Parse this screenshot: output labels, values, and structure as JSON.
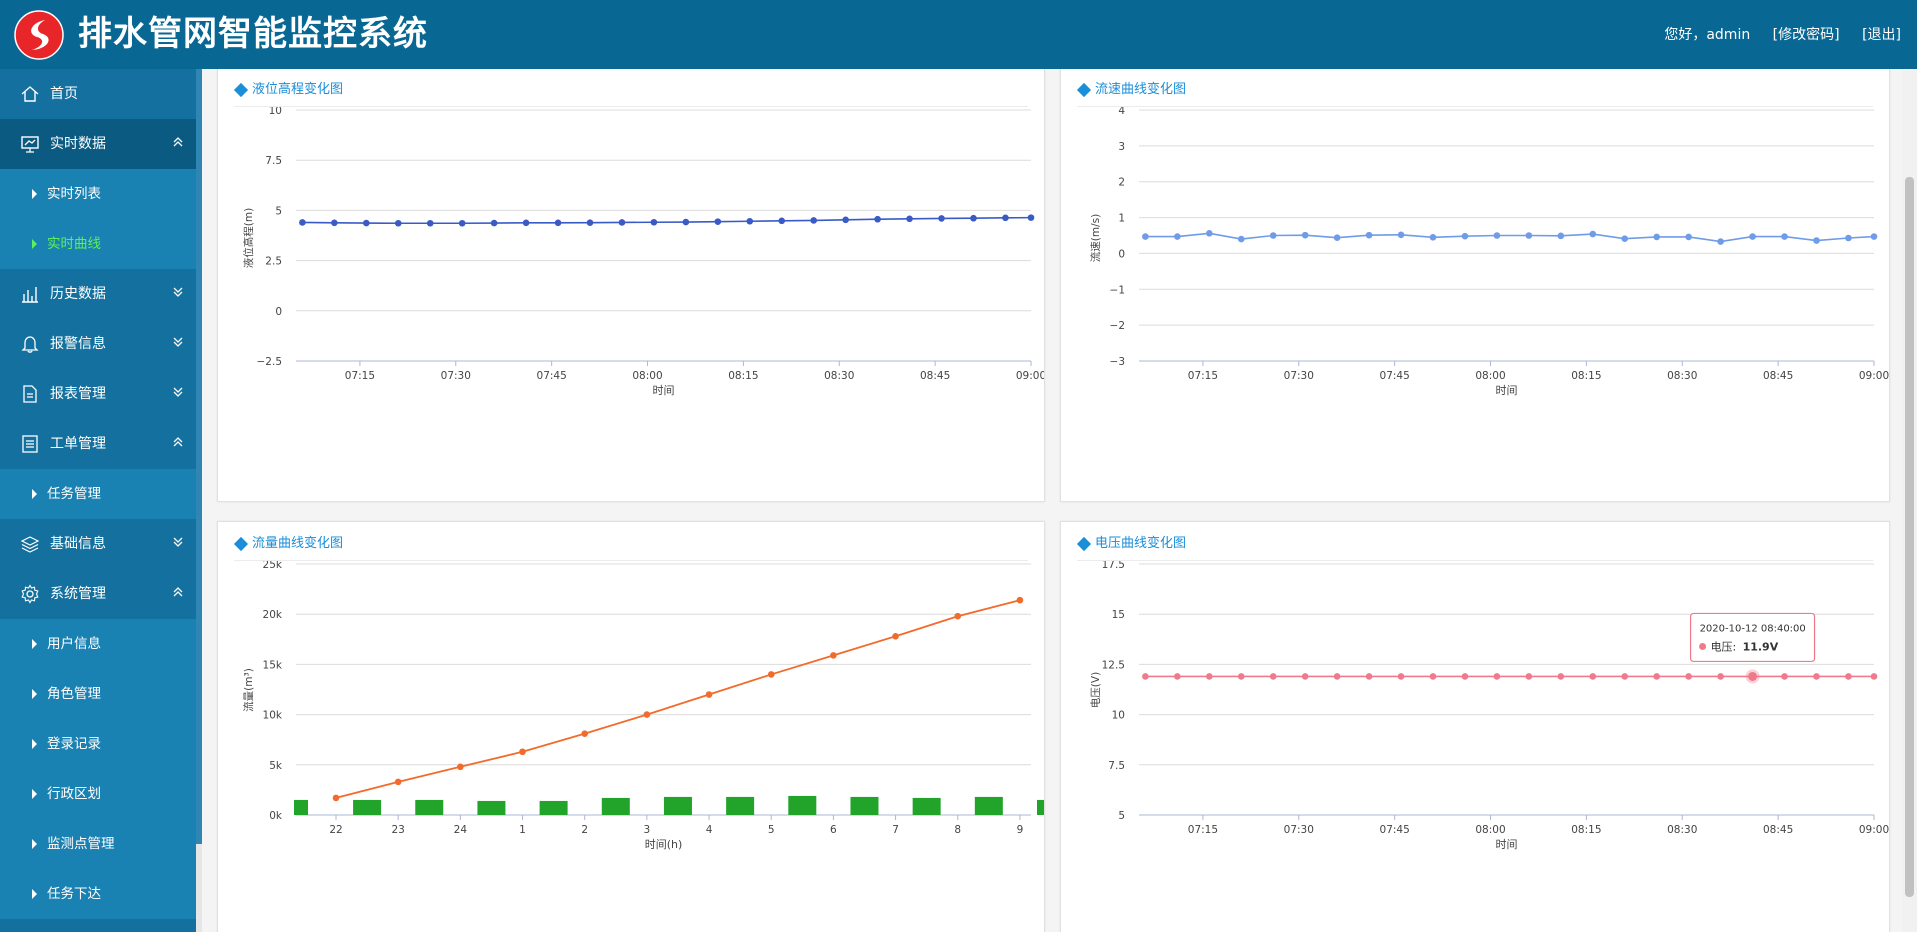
{
  "header": {
    "title": "排水管网智能监控系统",
    "greeting": "您好，admin",
    "change_password": "[修改密码]",
    "logout": "[退出]",
    "brand_color": "#086793"
  },
  "sidebar": {
    "items": [
      {
        "label": "首页",
        "icon": "home-icon",
        "type": "item",
        "chevron": ""
      },
      {
        "label": "实时数据",
        "icon": "monitor-icon",
        "type": "item",
        "chevron": "up",
        "active": true
      },
      {
        "label": "实时列表",
        "type": "sub"
      },
      {
        "label": "实时曲线",
        "type": "sub",
        "current": true
      },
      {
        "label": "历史数据",
        "icon": "bar-chart-icon",
        "type": "item",
        "chevron": "down"
      },
      {
        "label": "报警信息",
        "icon": "bell-icon",
        "type": "item",
        "chevron": "down"
      },
      {
        "label": "报表管理",
        "icon": "document-icon",
        "type": "item",
        "chevron": "down"
      },
      {
        "label": "工单管理",
        "icon": "list-icon",
        "type": "item",
        "chevron": "up"
      },
      {
        "label": "任务管理",
        "type": "sub"
      },
      {
        "label": "基础信息",
        "icon": "layers-icon",
        "type": "item",
        "chevron": "down"
      },
      {
        "label": "系统管理",
        "icon": "gear-icon",
        "type": "item",
        "chevron": "up"
      },
      {
        "label": "用户信息",
        "type": "sub"
      },
      {
        "label": "角色管理",
        "type": "sub"
      },
      {
        "label": "登录记录",
        "type": "sub"
      },
      {
        "label": "行政区划",
        "type": "sub"
      },
      {
        "label": "监测点管理",
        "type": "sub"
      },
      {
        "label": "任务下达",
        "type": "sub"
      }
    ]
  },
  "panels": {
    "level": {
      "title": "液位高程变化图"
    },
    "velocity": {
      "title": "流速曲线变化图"
    },
    "flow": {
      "title": "流量曲线变化图"
    },
    "voltage": {
      "title": "电压曲线变化图"
    }
  },
  "chart_data": [
    {
      "id": "level",
      "type": "line",
      "title": "液位高程变化图",
      "xlabel": "时间",
      "ylabel": "液位高程(m)",
      "x_ticks": [
        "07:15",
        "07:30",
        "07:45",
        "08:00",
        "08:15",
        "08:30",
        "08:45",
        "09:00"
      ],
      "x_range": [
        "07:05",
        "09:00"
      ],
      "y_ticks": [
        "10",
        "7.5",
        "5",
        "2.5",
        "0",
        "−2.5"
      ],
      "ylim": [
        -2.5,
        10
      ],
      "series": [
        {
          "color": "#3a5bc7",
          "x": [
            "07:06",
            "07:11",
            "07:16",
            "07:21",
            "07:26",
            "07:31",
            "07:36",
            "07:41",
            "07:46",
            "07:51",
            "07:56",
            "08:01",
            "08:06",
            "08:11",
            "08:16",
            "08:21",
            "08:26",
            "08:31",
            "08:36",
            "08:41",
            "08:46",
            "08:51",
            "08:56",
            "09:00"
          ],
          "values": [
            4.4,
            4.38,
            4.37,
            4.36,
            4.36,
            4.36,
            4.37,
            4.38,
            4.38,
            4.39,
            4.4,
            4.41,
            4.42,
            4.44,
            4.46,
            4.48,
            4.5,
            4.53,
            4.56,
            4.58,
            4.6,
            4.61,
            4.63,
            4.64
          ]
        }
      ]
    },
    {
      "id": "velocity",
      "type": "line",
      "title": "流速曲线变化图",
      "xlabel": "时间",
      "ylabel": "流速(m/s)",
      "x_ticks": [
        "07:15",
        "07:30",
        "07:45",
        "08:00",
        "08:15",
        "08:30",
        "08:45",
        "09:00"
      ],
      "x_range": [
        "07:05",
        "09:00"
      ],
      "y_ticks": [
        "4",
        "3",
        "2",
        "1",
        "0",
        "−1",
        "−2",
        "−3"
      ],
      "ylim": [
        -3,
        4
      ],
      "series": [
        {
          "color": "#6f9be8",
          "x": [
            "07:06",
            "07:11",
            "07:16",
            "07:21",
            "07:26",
            "07:31",
            "07:36",
            "07:41",
            "07:46",
            "07:51",
            "07:56",
            "08:01",
            "08:06",
            "08:11",
            "08:16",
            "08:21",
            "08:26",
            "08:31",
            "08:36",
            "08:41",
            "08:46",
            "08:51",
            "08:56",
            "09:00"
          ],
          "values": [
            0.47,
            0.47,
            0.56,
            0.4,
            0.5,
            0.51,
            0.44,
            0.51,
            0.52,
            0.45,
            0.48,
            0.5,
            0.5,
            0.49,
            0.54,
            0.41,
            0.46,
            0.46,
            0.33,
            0.47,
            0.47,
            0.36,
            0.43,
            0.47
          ]
        }
      ]
    },
    {
      "id": "flow",
      "type": "bar+line",
      "title": "流量曲线变化图",
      "xlabel": "时间(h)",
      "ylabel": "流量(m³)",
      "categories": [
        "22",
        "23",
        "24",
        "1",
        "2",
        "3",
        "4",
        "5",
        "6",
        "7",
        "8",
        "9"
      ],
      "y_ticks": [
        "25k",
        "20k",
        "15k",
        "10k",
        "5k",
        "0k"
      ],
      "ylim": [
        0,
        25000
      ],
      "series": [
        {
          "type": "bar",
          "color": "#22a32a",
          "values": [
            1500,
            1500,
            1400,
            1400,
            1700,
            1800,
            1800,
            1900,
            1800,
            1700,
            1800,
            1500
          ],
          "extra_leading_bar": 1500
        },
        {
          "type": "line",
          "color": "#f26b2a",
          "values": [
            1700,
            3300,
            4800,
            6300,
            8100,
            10000,
            12000,
            14000,
            15900,
            17800,
            19800,
            21400
          ]
        }
      ]
    },
    {
      "id": "voltage",
      "type": "line",
      "title": "电压曲线变化图",
      "xlabel": "时间",
      "ylabel": "电压(V)",
      "x_ticks": [
        "07:15",
        "07:30",
        "07:45",
        "08:00",
        "08:15",
        "08:30",
        "08:45",
        "09:00"
      ],
      "x_range": [
        "07:05",
        "09:00"
      ],
      "y_ticks": [
        "17.5",
        "15",
        "12.5",
        "10",
        "7.5",
        "5"
      ],
      "ylim": [
        5,
        17.5
      ],
      "series": [
        {
          "name": "电压",
          "color": "#ef7a8c",
          "x": [
            "07:06",
            "07:11",
            "07:16",
            "07:21",
            "07:26",
            "07:31",
            "07:36",
            "07:41",
            "07:46",
            "07:51",
            "07:56",
            "08:01",
            "08:06",
            "08:11",
            "08:16",
            "08:21",
            "08:26",
            "08:31",
            "08:36",
            "08:41",
            "08:46",
            "08:51",
            "08:56",
            "09:00"
          ],
          "values": [
            11.9,
            11.9,
            11.9,
            11.9,
            11.9,
            11.9,
            11.9,
            11.9,
            11.9,
            11.9,
            11.9,
            11.9,
            11.9,
            11.9,
            11.9,
            11.9,
            11.9,
            11.9,
            11.9,
            11.9,
            11.9,
            11.9,
            11.9,
            11.9
          ]
        }
      ],
      "tooltip": {
        "time": "2020-10-12 08:40:00",
        "label": "电压: ",
        "value": "11.9V",
        "at": "08:41"
      }
    }
  ]
}
